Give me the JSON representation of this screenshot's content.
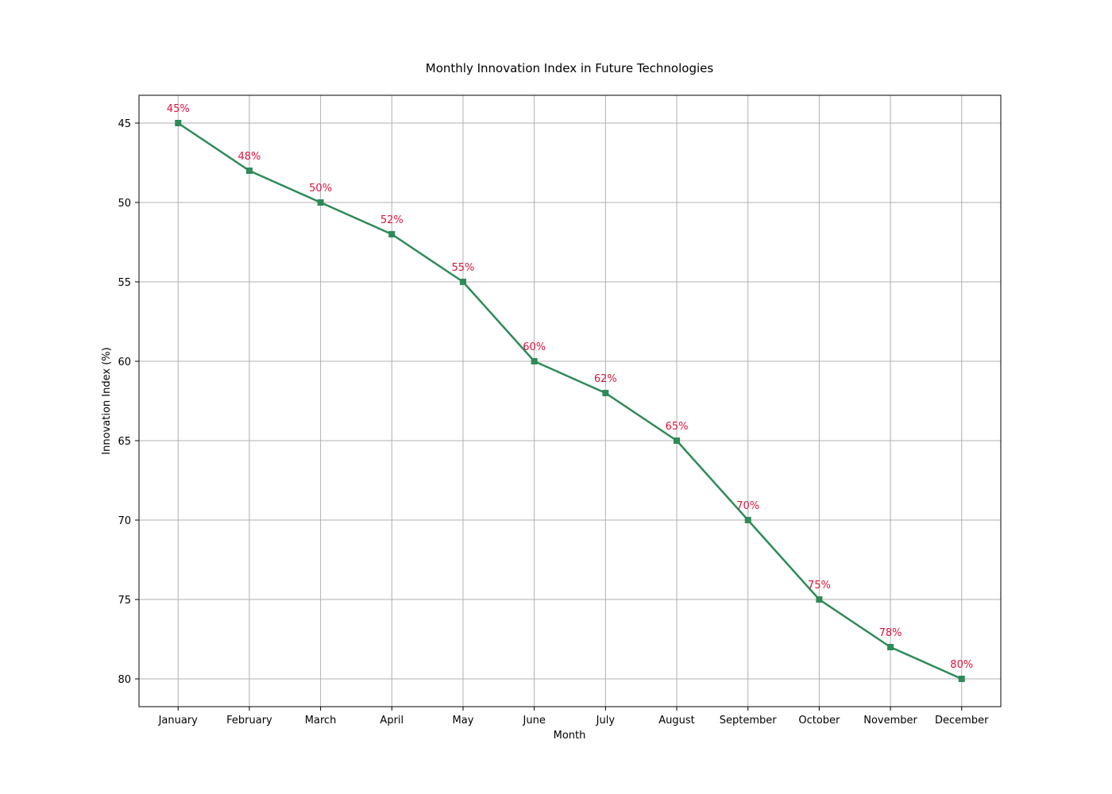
{
  "chart_data": {
    "type": "line",
    "title": "Monthly Innovation Index in Future Technologies",
    "xlabel": "Month",
    "ylabel": "Innovation Index (%)",
    "categories": [
      "January",
      "February",
      "March",
      "April",
      "May",
      "June",
      "July",
      "August",
      "September",
      "October",
      "November",
      "December"
    ],
    "series": [
      {
        "values": [
          45,
          48,
          50,
          52,
          55,
          60,
          62,
          65,
          70,
          75,
          78,
          80
        ]
      }
    ],
    "data_labels": [
      "45%",
      "48%",
      "50%",
      "52%",
      "55%",
      "60%",
      "62%",
      "65%",
      "70%",
      "75%",
      "78%",
      "80%"
    ],
    "ylim": [
      43.25,
      81.75
    ],
    "y_inverted": true,
    "yticks": [
      45,
      50,
      55,
      60,
      65,
      70,
      75,
      80
    ],
    "grid": true,
    "marker": "square",
    "colors": {
      "line": "#2e8b57",
      "data_label": "#dc143c"
    }
  }
}
